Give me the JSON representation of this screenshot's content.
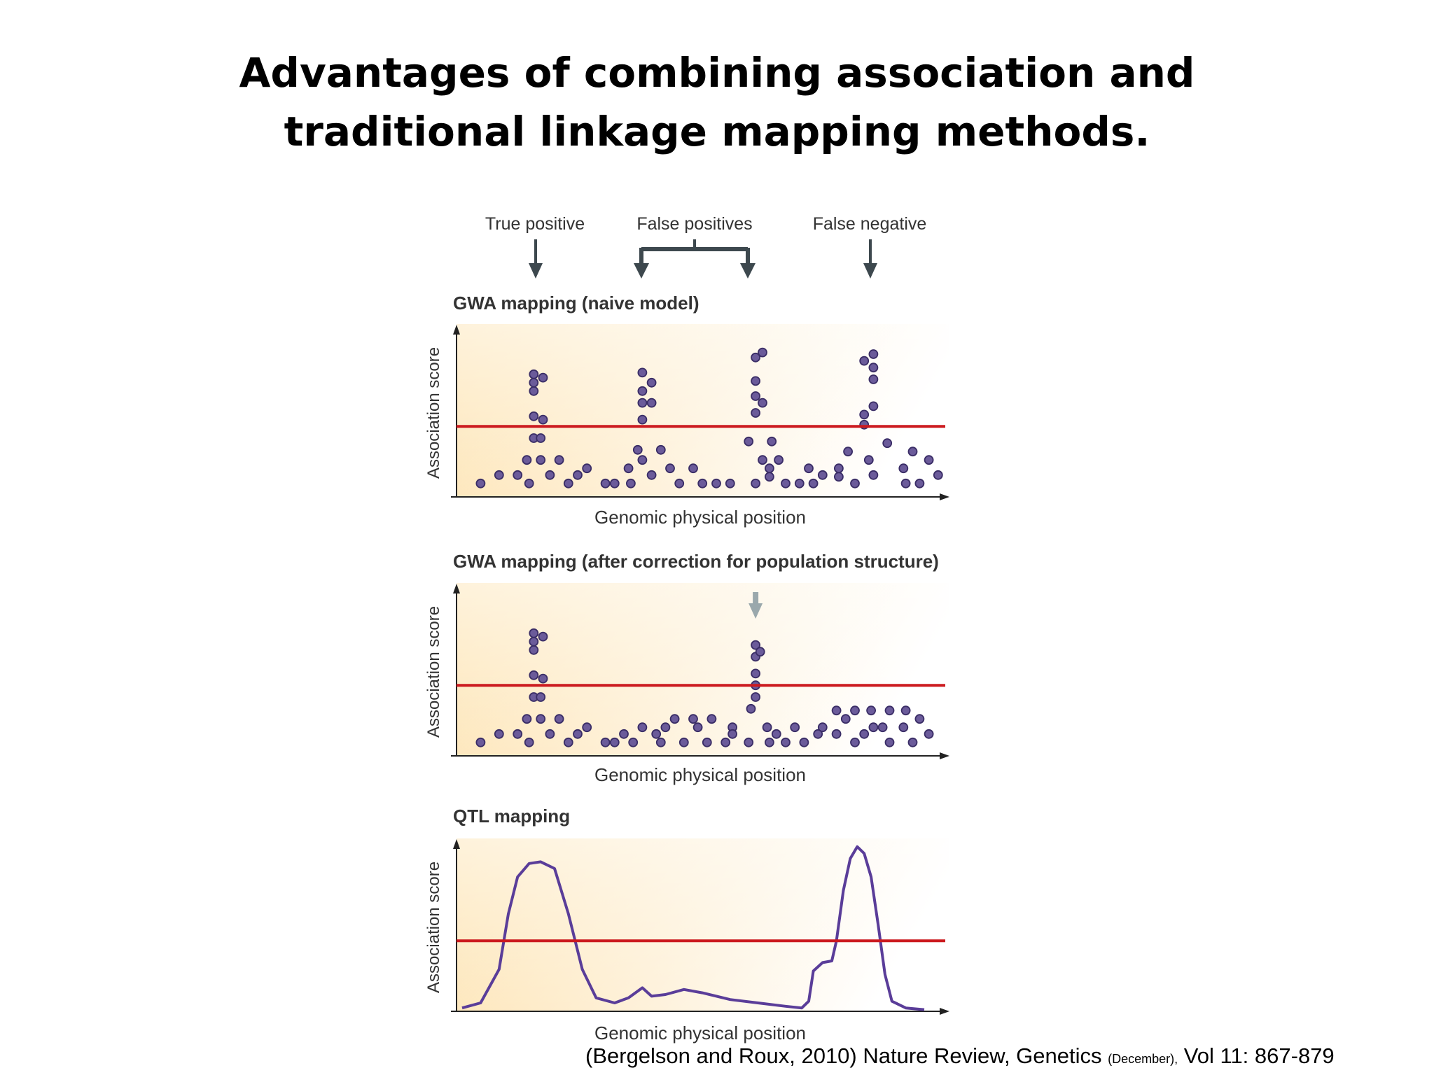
{
  "slide": {
    "title_line1": "Advantages of combining association and",
    "title_line2": "traditional linkage mapping methods."
  },
  "annotations": {
    "true_positive": "True positive",
    "false_positives": "False positives",
    "false_negative": "False negative"
  },
  "colors": {
    "threshold": "#cc1a1f",
    "dot_fill": "#6b5b9a",
    "dot_stroke": "#3a2d66",
    "curve": "#5a3d99",
    "arrow": "#3d484e",
    "arrow_light": "#9aa8ac",
    "panel_bg": "#fde8bf"
  },
  "chart_data": [
    {
      "type": "scatter",
      "title": "GWA mapping (naive model)",
      "ylabel": "Association score",
      "xlabel": "Genomic physical position",
      "threshold": 0.42,
      "points": [
        [
          0.04,
          0.08
        ],
        [
          0.08,
          0.13
        ],
        [
          0.12,
          0.13
        ],
        [
          0.14,
          0.22
        ],
        [
          0.145,
          0.08
        ],
        [
          0.155,
          0.35
        ],
        [
          0.155,
          0.48
        ],
        [
          0.155,
          0.63
        ],
        [
          0.155,
          0.68
        ],
        [
          0.155,
          0.73
        ],
        [
          0.17,
          0.35
        ],
        [
          0.17,
          0.22
        ],
        [
          0.175,
          0.46
        ],
        [
          0.175,
          0.71
        ],
        [
          0.19,
          0.13
        ],
        [
          0.21,
          0.22
        ],
        [
          0.23,
          0.08
        ],
        [
          0.25,
          0.13
        ],
        [
          0.27,
          0.17
        ],
        [
          0.31,
          0.08
        ],
        [
          0.33,
          0.08
        ],
        [
          0.36,
          0.17
        ],
        [
          0.365,
          0.08
        ],
        [
          0.38,
          0.28
        ],
        [
          0.39,
          0.22
        ],
        [
          0.39,
          0.46
        ],
        [
          0.39,
          0.56
        ],
        [
          0.39,
          0.63
        ],
        [
          0.39,
          0.74
        ],
        [
          0.41,
          0.13
        ],
        [
          0.41,
          0.56
        ],
        [
          0.41,
          0.68
        ],
        [
          0.43,
          0.28
        ],
        [
          0.45,
          0.17
        ],
        [
          0.47,
          0.08
        ],
        [
          0.5,
          0.17
        ],
        [
          0.52,
          0.08
        ],
        [
          0.55,
          0.08
        ],
        [
          0.58,
          0.08
        ],
        [
          0.62,
          0.33
        ],
        [
          0.635,
          0.08
        ],
        [
          0.635,
          0.5
        ],
        [
          0.635,
          0.6
        ],
        [
          0.635,
          0.69
        ],
        [
          0.635,
          0.83
        ],
        [
          0.65,
          0.22
        ],
        [
          0.65,
          0.56
        ],
        [
          0.65,
          0.86
        ],
        [
          0.665,
          0.17
        ],
        [
          0.665,
          0.12
        ],
        [
          0.67,
          0.33
        ],
        [
          0.685,
          0.22
        ],
        [
          0.7,
          0.08
        ],
        [
          0.73,
          0.08
        ],
        [
          0.75,
          0.17
        ],
        [
          0.76,
          0.08
        ],
        [
          0.78,
          0.13
        ],
        [
          0.815,
          0.12
        ],
        [
          0.815,
          0.17
        ],
        [
          0.835,
          0.27
        ],
        [
          0.85,
          0.08
        ],
        [
          0.87,
          0.43
        ],
        [
          0.87,
          0.49
        ],
        [
          0.87,
          0.81
        ],
        [
          0.88,
          0.22
        ],
        [
          0.89,
          0.13
        ],
        [
          0.89,
          0.54
        ],
        [
          0.89,
          0.7
        ],
        [
          0.89,
          0.77
        ],
        [
          0.89,
          0.85
        ],
        [
          0.92,
          0.32
        ],
        [
          0.955,
          0.17
        ],
        [
          0.96,
          0.08
        ],
        [
          0.975,
          0.27
        ],
        [
          0.99,
          0.08
        ],
        [
          1.01,
          0.22
        ],
        [
          1.03,
          0.13
        ]
      ]
    },
    {
      "type": "scatter",
      "title": "GWA mapping (after correction for population structure)",
      "ylabel": "Association score",
      "xlabel": "Genomic physical position",
      "threshold": 0.42,
      "points": [
        [
          0.04,
          0.08
        ],
        [
          0.08,
          0.13
        ],
        [
          0.12,
          0.13
        ],
        [
          0.14,
          0.22
        ],
        [
          0.145,
          0.08
        ],
        [
          0.155,
          0.35
        ],
        [
          0.155,
          0.48
        ],
        [
          0.155,
          0.63
        ],
        [
          0.155,
          0.68
        ],
        [
          0.155,
          0.73
        ],
        [
          0.17,
          0.35
        ],
        [
          0.17,
          0.22
        ],
        [
          0.175,
          0.46
        ],
        [
          0.175,
          0.71
        ],
        [
          0.19,
          0.13
        ],
        [
          0.21,
          0.22
        ],
        [
          0.23,
          0.08
        ],
        [
          0.25,
          0.13
        ],
        [
          0.27,
          0.17
        ],
        [
          0.31,
          0.08
        ],
        [
          0.33,
          0.08
        ],
        [
          0.35,
          0.13
        ],
        [
          0.37,
          0.08
        ],
        [
          0.39,
          0.17
        ],
        [
          0.42,
          0.13
        ],
        [
          0.43,
          0.08
        ],
        [
          0.44,
          0.17
        ],
        [
          0.46,
          0.22
        ],
        [
          0.48,
          0.08
        ],
        [
          0.5,
          0.22
        ],
        [
          0.51,
          0.17
        ],
        [
          0.53,
          0.08
        ],
        [
          0.54,
          0.22
        ],
        [
          0.57,
          0.08
        ],
        [
          0.585,
          0.17
        ],
        [
          0.585,
          0.13
        ],
        [
          0.62,
          0.08
        ],
        [
          0.625,
          0.28
        ],
        [
          0.635,
          0.35
        ],
        [
          0.635,
          0.42
        ],
        [
          0.635,
          0.49
        ],
        [
          0.635,
          0.59
        ],
        [
          0.635,
          0.66
        ],
        [
          0.645,
          0.62
        ],
        [
          0.66,
          0.17
        ],
        [
          0.665,
          0.08
        ],
        [
          0.68,
          0.13
        ],
        [
          0.7,
          0.08
        ],
        [
          0.72,
          0.17
        ],
        [
          0.74,
          0.08
        ],
        [
          0.77,
          0.13
        ],
        [
          0.78,
          0.17
        ],
        [
          0.81,
          0.13
        ],
        [
          0.81,
          0.27
        ],
        [
          0.83,
          0.22
        ],
        [
          0.85,
          0.08
        ],
        [
          0.85,
          0.27
        ],
        [
          0.87,
          0.13
        ],
        [
          0.885,
          0.27
        ],
        [
          0.89,
          0.17
        ],
        [
          0.91,
          0.17
        ],
        [
          0.925,
          0.08
        ],
        [
          0.925,
          0.27
        ],
        [
          0.955,
          0.17
        ],
        [
          0.96,
          0.27
        ],
        [
          0.975,
          0.08
        ],
        [
          0.99,
          0.22
        ],
        [
          1.01,
          0.13
        ]
      ]
    },
    {
      "type": "line",
      "title": "QTL mapping",
      "ylabel": "Association score",
      "xlabel": "Genomic physical position",
      "threshold": 0.42,
      "curve": [
        [
          0,
          0.02
        ],
        [
          0.04,
          0.05
        ],
        [
          0.08,
          0.25
        ],
        [
          0.1,
          0.58
        ],
        [
          0.12,
          0.8
        ],
        [
          0.145,
          0.88
        ],
        [
          0.17,
          0.89
        ],
        [
          0.2,
          0.85
        ],
        [
          0.23,
          0.58
        ],
        [
          0.26,
          0.25
        ],
        [
          0.29,
          0.08
        ],
        [
          0.33,
          0.05
        ],
        [
          0.36,
          0.08
        ],
        [
          0.39,
          0.14
        ],
        [
          0.41,
          0.09
        ],
        [
          0.44,
          0.1
        ],
        [
          0.48,
          0.13
        ],
        [
          0.52,
          0.11
        ],
        [
          0.58,
          0.07
        ],
        [
          0.64,
          0.05
        ],
        [
          0.7,
          0.03
        ],
        [
          0.735,
          0.02
        ],
        [
          0.75,
          0.06
        ],
        [
          0.76,
          0.24
        ],
        [
          0.78,
          0.29
        ],
        [
          0.8,
          0.3
        ],
        [
          0.81,
          0.42
        ],
        [
          0.825,
          0.72
        ],
        [
          0.84,
          0.91
        ],
        [
          0.855,
          0.98
        ],
        [
          0.87,
          0.94
        ],
        [
          0.885,
          0.8
        ],
        [
          0.9,
          0.52
        ],
        [
          0.915,
          0.22
        ],
        [
          0.93,
          0.06
        ],
        [
          0.96,
          0.02
        ],
        [
          1.0,
          0.01
        ]
      ]
    }
  ],
  "citation": {
    "main": "(Bergelson and Roux, 2010) Nature Review, Genetics",
    "small": "(December),",
    "volume": "Vol 11: 867-879"
  }
}
